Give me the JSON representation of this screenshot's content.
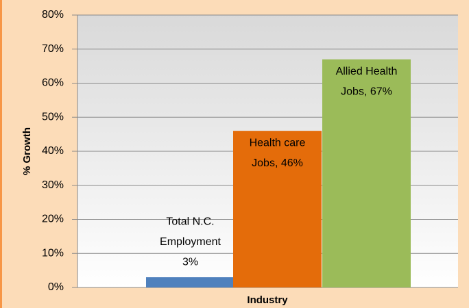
{
  "chart_data": {
    "type": "bar",
    "xlabel": "Industry",
    "ylabel": "% Growth",
    "values": [
      3,
      46,
      67
    ],
    "value_labels": [
      [
        "Total N.C.",
        "Employment",
        "3%"
      ],
      [
        "Health care",
        "Jobs, 46%"
      ],
      [
        "Allied Health",
        "Jobs, 67%"
      ]
    ],
    "colors": [
      "#4f81bd",
      "#e46c0a",
      "#9bbb59"
    ],
    "ylim": [
      0,
      80
    ],
    "yticks": [
      {
        "value": 0,
        "label": "0%"
      },
      {
        "value": 10,
        "label": "10%"
      },
      {
        "value": 20,
        "label": "20%"
      },
      {
        "value": 30,
        "label": "30%"
      },
      {
        "value": 40,
        "label": "40%"
      },
      {
        "value": 50,
        "label": "50%"
      },
      {
        "value": 60,
        "label": "60%"
      },
      {
        "value": 70,
        "label": "70%"
      },
      {
        "value": 80,
        "label": "80%"
      }
    ],
    "grid": true
  }
}
